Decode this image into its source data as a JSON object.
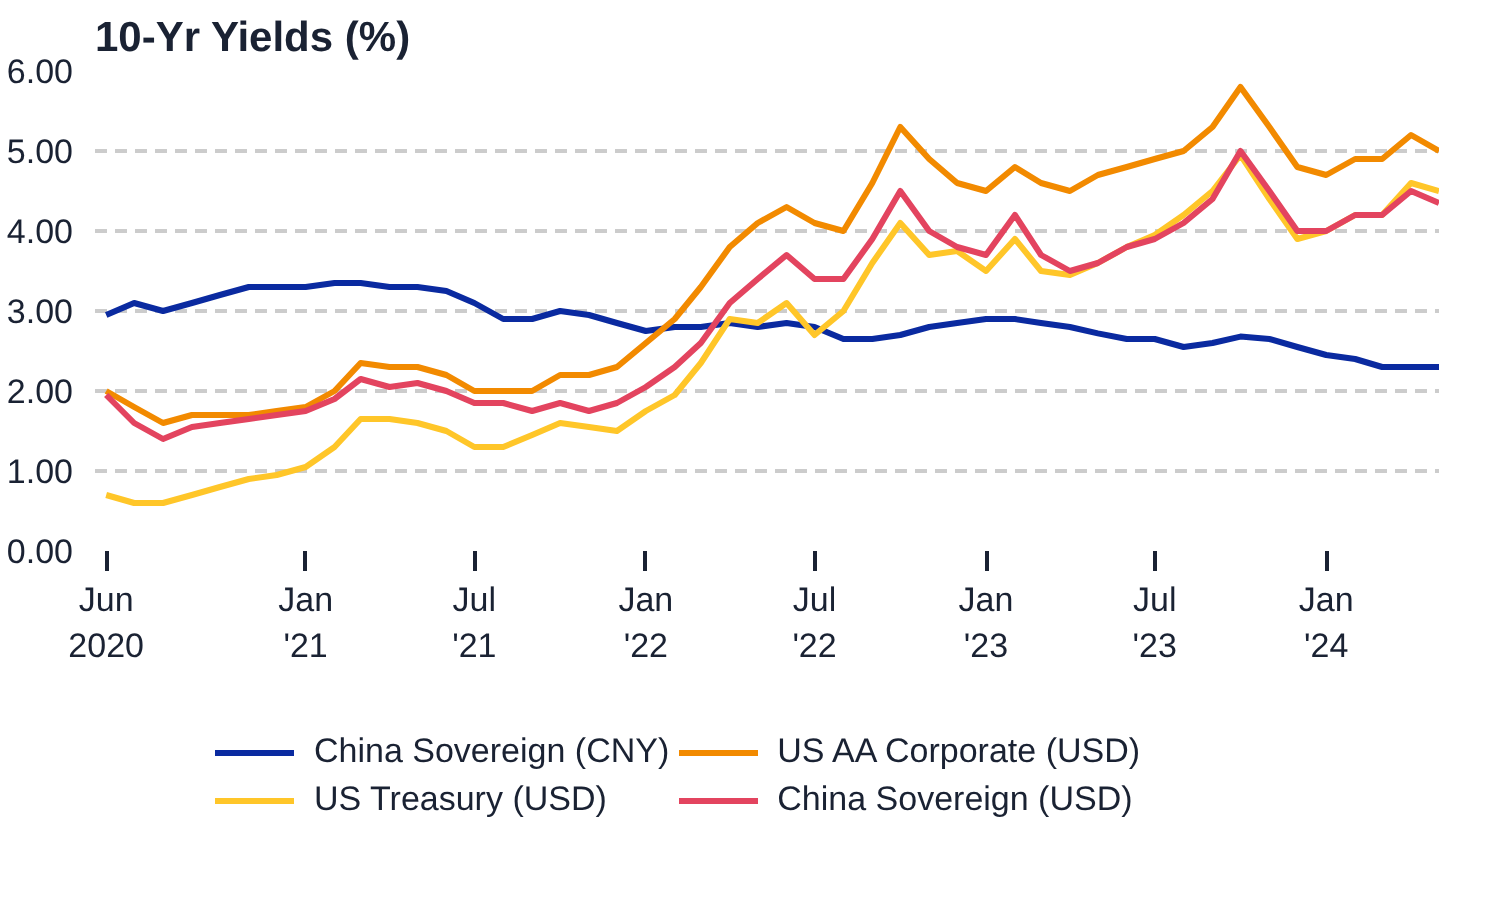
{
  "chart_data": {
    "type": "line",
    "title": "10-Yr Yields (%)",
    "x": [
      "2020-06",
      "2020-07",
      "2020-08",
      "2020-09",
      "2020-10",
      "2020-11",
      "2020-12",
      "2021-01",
      "2021-02",
      "2021-03",
      "2021-04",
      "2021-05",
      "2021-06",
      "2021-07",
      "2021-08",
      "2021-09",
      "2021-10",
      "2021-11",
      "2021-12",
      "2022-01",
      "2022-02",
      "2022-03",
      "2022-04",
      "2022-05",
      "2022-06",
      "2022-07",
      "2022-08",
      "2022-09",
      "2022-10",
      "2022-11",
      "2022-12",
      "2023-01",
      "2023-02",
      "2023-03",
      "2023-04",
      "2023-05",
      "2023-06",
      "2023-07",
      "2023-08",
      "2023-09",
      "2023-10",
      "2023-11",
      "2023-12",
      "2024-01",
      "2024-02",
      "2024-03",
      "2024-04",
      "2024-05"
    ],
    "series": [
      {
        "name": "China Sovereign (CNY)",
        "color": "#0a2aa0",
        "values": [
          2.95,
          3.1,
          3.0,
          3.1,
          3.2,
          3.3,
          3.3,
          3.3,
          3.35,
          3.35,
          3.3,
          3.3,
          3.25,
          3.1,
          2.9,
          2.9,
          3.0,
          2.95,
          2.85,
          2.75,
          2.8,
          2.8,
          2.85,
          2.8,
          2.85,
          2.8,
          2.65,
          2.65,
          2.7,
          2.8,
          2.85,
          2.9,
          2.9,
          2.85,
          2.8,
          2.72,
          2.65,
          2.65,
          2.55,
          2.6,
          2.68,
          2.65,
          2.55,
          2.45,
          2.4,
          2.3,
          2.3,
          2.3
        ]
      },
      {
        "name": "US AA Corporate (USD)",
        "color": "#f28a00",
        "values": [
          2.0,
          1.8,
          1.6,
          1.7,
          1.7,
          1.7,
          1.75,
          1.8,
          2.0,
          2.35,
          2.3,
          2.3,
          2.2,
          2.0,
          2.0,
          2.0,
          2.2,
          2.2,
          2.3,
          2.6,
          2.9,
          3.3,
          3.8,
          4.1,
          4.3,
          4.1,
          4.0,
          4.6,
          5.3,
          4.9,
          4.6,
          4.5,
          4.8,
          4.6,
          4.5,
          4.7,
          4.8,
          4.9,
          5.0,
          5.3,
          5.8,
          5.3,
          4.8,
          4.7,
          4.9,
          4.9,
          5.2,
          5.0
        ]
      },
      {
        "name": "US Treasury (USD)",
        "color": "#ffc629",
        "values": [
          0.7,
          0.6,
          0.6,
          0.7,
          0.8,
          0.9,
          0.95,
          1.05,
          1.3,
          1.65,
          1.65,
          1.6,
          1.5,
          1.3,
          1.3,
          1.45,
          1.6,
          1.55,
          1.5,
          1.75,
          1.95,
          2.35,
          2.9,
          2.85,
          3.1,
          2.7,
          3.0,
          3.6,
          4.1,
          3.7,
          3.75,
          3.5,
          3.9,
          3.5,
          3.45,
          3.6,
          3.8,
          3.95,
          4.2,
          4.5,
          4.95,
          4.4,
          3.9,
          4.0,
          4.2,
          4.2,
          4.6,
          4.5
        ]
      },
      {
        "name": "China Sovereign (USD)",
        "color": "#e3445f",
        "values": [
          1.95,
          1.6,
          1.4,
          1.55,
          1.6,
          1.65,
          1.7,
          1.75,
          1.9,
          2.15,
          2.05,
          2.1,
          2.0,
          1.85,
          1.85,
          1.75,
          1.85,
          1.75,
          1.85,
          2.05,
          2.3,
          2.6,
          3.1,
          3.4,
          3.7,
          3.4,
          3.4,
          3.9,
          4.5,
          4.0,
          3.8,
          3.7,
          4.2,
          3.7,
          3.5,
          3.6,
          3.8,
          3.9,
          4.1,
          4.4,
          5.0,
          4.5,
          4.0,
          4.0,
          4.2,
          4.2,
          4.5,
          4.35
        ]
      }
    ],
    "xlim": [
      "2020-05-20",
      "2024-05-01"
    ],
    "xticks": [
      {
        "value": "2020-06-01",
        "label": "Jun\n2020"
      },
      {
        "value": "2021-01-01",
        "label": "Jan\n'21"
      },
      {
        "value": "2021-07-01",
        "label": "Jul\n'21"
      },
      {
        "value": "2022-01-01",
        "label": "Jan\n'22"
      },
      {
        "value": "2022-07-01",
        "label": "Jul\n'22"
      },
      {
        "value": "2023-01-01",
        "label": "Jan\n'23"
      },
      {
        "value": "2023-07-01",
        "label": "Jul\n'23"
      },
      {
        "value": "2024-01-01",
        "label": "Jan\n'24"
      }
    ],
    "ylim": [
      0,
      6
    ],
    "yticks": [
      {
        "value": 0,
        "label": "0.00"
      },
      {
        "value": 1,
        "label": "1.00"
      },
      {
        "value": 2,
        "label": "2.00"
      },
      {
        "value": 3,
        "label": "3.00"
      },
      {
        "value": 4,
        "label": "4.00"
      },
      {
        "value": 5,
        "label": "5.00"
      },
      {
        "value": 6,
        "label": "6.00"
      }
    ],
    "grid": "y",
    "legend": "bottom",
    "line_style": "solid"
  }
}
